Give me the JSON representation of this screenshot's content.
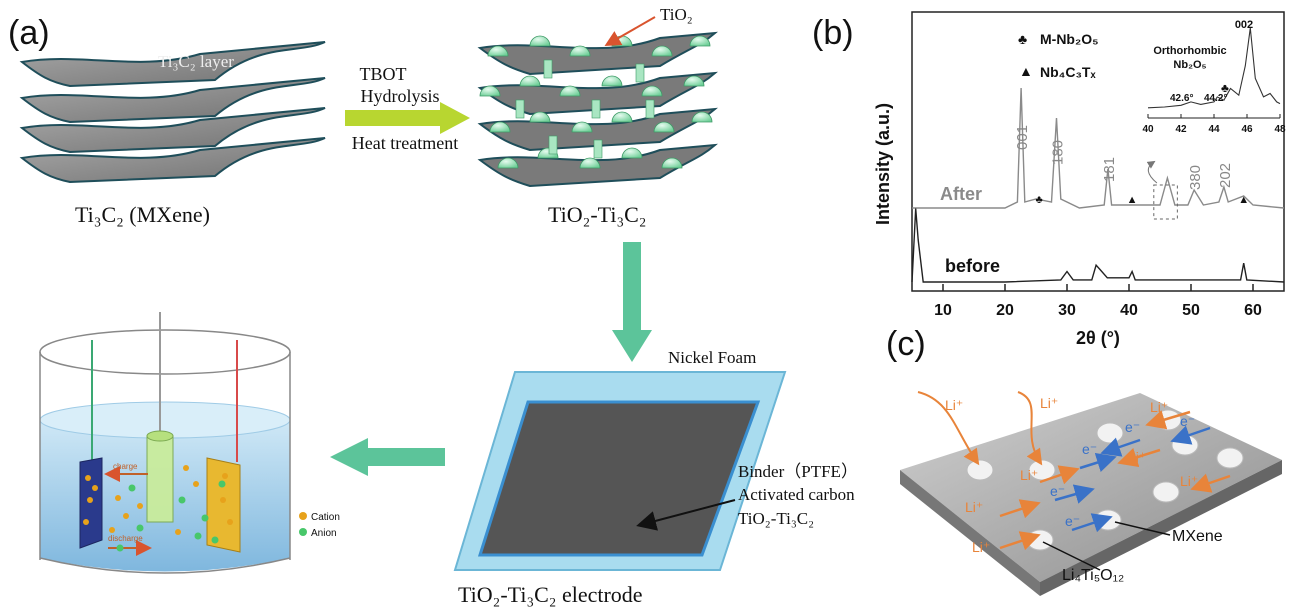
{
  "panel_a": {
    "label": "(a)",
    "layer_label": "Ti₃C₂ layer",
    "mxene_caption": "Ti₃C₂ (MXene)",
    "process_line1": "TBOT",
    "process_line2": "Hydrolysis",
    "process_line3": "Heat treatment",
    "tio2_label": "TiO₂",
    "composite_caption": "TiO₂-Ti₃C₂",
    "nickel_foam": "Nickel Foam",
    "binder": "Binder（PTFE）",
    "activated_carbon": "Activated carbon",
    "electrode_material": "TiO₂-Ti₃C₂",
    "electrode_caption": "TiO₂-Ti₃C₂ electrode",
    "charge": "charge",
    "discharge": "discharge",
    "cation": "Cation",
    "anion": "Anion"
  },
  "panel_b": {
    "label": "(b)",
    "ylabel": "Intensity (a.u.)",
    "xlabel": "2θ (°)",
    "legend_m": "M-Nb₂O₅",
    "legend_nb": "Nb₄C₃Tₓ",
    "after": "After",
    "before": "before",
    "peak_001": "001",
    "peak_180": "180",
    "peak_181": "181",
    "peak_380": "380",
    "peak_202": "202",
    "inset_title1": "Orthorhombic",
    "inset_title2": "Nb₂O₅",
    "inset_peak": "002",
    "inset_426": "42.6°",
    "inset_442": "44.2°"
  },
  "panel_c": {
    "label": "(c)",
    "li": "Li⁺",
    "e": "e⁻",
    "mxene": "MXene",
    "lto": "Li₄Ti₅O₁₂"
  },
  "colors": {
    "sheet": "#8c8c8c",
    "sheet_edge": "#1f4e5a",
    "sphere": "#9be0b8",
    "arrow_green": "#5cc49a",
    "arrow_yellow": "#b8d630",
    "li_orange": "#e8843a",
    "e_blue": "#3a72c8",
    "electrolyte": "#a8d4ee"
  },
  "chart_data": [
    {
      "type": "line",
      "title": "",
      "xlabel": "2θ (°)",
      "ylabel": "Intensity (a.u.)",
      "xlim": [
        5,
        65
      ],
      "xticks": [
        10,
        20,
        30,
        40,
        50,
        60
      ],
      "grid": false,
      "series": [
        {
          "name": "After",
          "x": [
            5,
            20,
            22,
            22.6,
            23.2,
            25,
            27.5,
            28.3,
            29,
            32,
            36,
            36.6,
            37.2,
            40,
            45,
            46.2,
            47.4,
            49.5,
            50.5,
            52,
            54.5,
            55.3,
            56,
            58.5,
            60,
            65
          ],
          "y": [
            0.14,
            0.14,
            0.16,
            0.54,
            0.16,
            0.17,
            0.16,
            0.44,
            0.17,
            0.14,
            0.15,
            0.27,
            0.15,
            0.15,
            0.15,
            0.24,
            0.15,
            0.15,
            0.2,
            0.15,
            0.16,
            0.21,
            0.16,
            0.18,
            0.15,
            0.14
          ]
        },
        {
          "name": "before",
          "x": [
            5,
            5.6,
            6,
            6.8,
            8,
            20,
            29,
            30,
            31,
            34,
            34.7,
            35.3,
            36.5,
            40,
            40.5,
            41,
            45,
            58,
            58.5,
            59,
            65
          ],
          "y": [
            0.0,
            0.35,
            0.2,
            0.0,
            0.0,
            0.0,
            0.01,
            0.05,
            0.01,
            0.01,
            0.08,
            0.06,
            0.02,
            0.02,
            0.05,
            0.01,
            0.01,
            0.01,
            0.09,
            0.01,
            0.0
          ]
        }
      ]
    },
    {
      "type": "line",
      "title": "Orthorhombic Nb₂O₅",
      "xlim": [
        40,
        48
      ],
      "xticks": [
        40,
        42,
        44,
        46,
        48
      ],
      "series": [
        {
          "name": "",
          "x": [
            40,
            41,
            42,
            42.6,
            43.2,
            44,
            44.2,
            44.6,
            45,
            45.5,
            45.9,
            46.2,
            46.5,
            47,
            47.4,
            47.8,
            48
          ],
          "y": [
            0.05,
            0.06,
            0.08,
            0.12,
            0.09,
            0.12,
            0.18,
            0.14,
            0.28,
            0.2,
            0.55,
            1.0,
            0.4,
            0.18,
            0.22,
            0.12,
            0.1
          ]
        }
      ]
    }
  ]
}
